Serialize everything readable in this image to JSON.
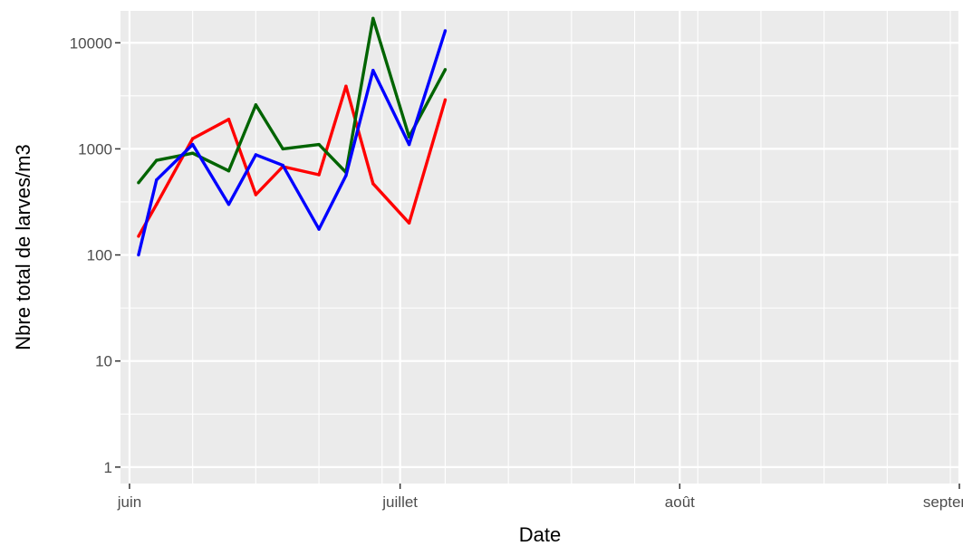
{
  "chart_data": {
    "type": "line",
    "title": "",
    "xlabel": "Date",
    "ylabel": "Nbre total de larves/m3",
    "x_scale": "date",
    "y_scale": "log10",
    "xlim": [
      "2021-05-31",
      "2021-09-01"
    ],
    "ylim": [
      0.7,
      20000
    ],
    "grid": true,
    "legend": "none",
    "background_color": "#EBEBEB",
    "grid_color": "#FFFFFF",
    "x_ticks": [
      {
        "date": "2021-06-01",
        "label": "juin"
      },
      {
        "date": "2021-07-01",
        "label": "juillet"
      },
      {
        "date": "2021-08-01",
        "label": "août"
      },
      {
        "date": "2021-09-01",
        "label": "septembre"
      }
    ],
    "y_ticks": [
      {
        "value": 1,
        "label": "1"
      },
      {
        "value": 10,
        "label": "10"
      },
      {
        "value": 100,
        "label": "100"
      },
      {
        "value": 1000,
        "label": "1000"
      },
      {
        "value": 10000,
        "label": "10000"
      }
    ],
    "x": [
      "2021-06-02",
      "2021-06-04",
      "2021-06-08",
      "2021-06-12",
      "2021-06-15",
      "2021-06-18",
      "2021-06-22",
      "2021-06-25",
      "2021-06-28",
      "2021-07-02",
      "2021-07-06"
    ],
    "series": [
      {
        "color": "#FF0000",
        "values": [
          150,
          300,
          1250,
          1900,
          370,
          680,
          570,
          3900,
          470,
          200,
          2900
        ]
      },
      {
        "color": "#006400",
        "values": [
          480,
          780,
          910,
          620,
          2600,
          1000,
          1100,
          600,
          17000,
          1300,
          5600
        ]
      },
      {
        "color": "#0000FF",
        "values": [
          100,
          510,
          1100,
          300,
          880,
          700,
          175,
          560,
          5500,
          1100,
          13000
        ]
      }
    ]
  }
}
